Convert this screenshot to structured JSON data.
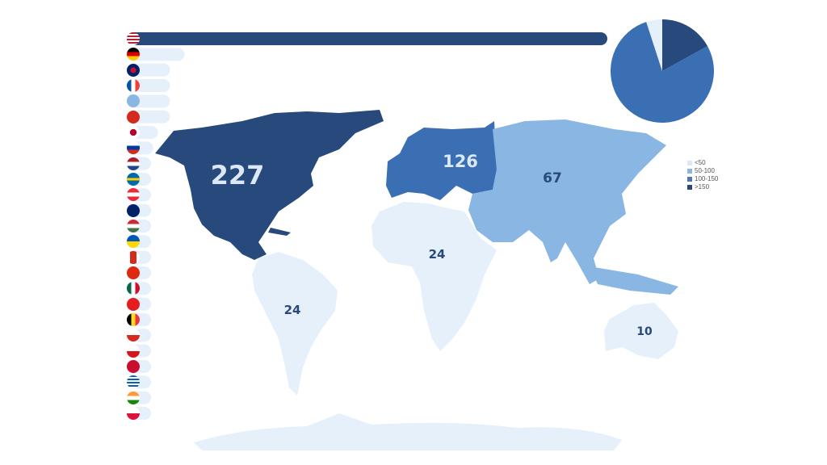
{
  "colors": {
    "lt50": "#e6f0fb",
    "r50_100": "#8ab6e4",
    "r100_150": "#3a6fb3",
    "gt150": "#27497c",
    "bar_track": "#e6f0fb"
  },
  "legend": [
    {
      "label": "<50",
      "color": "#dce8f5"
    },
    {
      "label": "50-100",
      "color": "#8ab6e4"
    },
    {
      "label": "100-150",
      "color": "#4a79b6"
    },
    {
      "label": ">150",
      "color": "#27497c"
    }
  ],
  "chart_data": [
    {
      "type": "map",
      "regions": [
        {
          "name": "North America",
          "value": 227,
          "label": "227"
        },
        {
          "name": "Europe",
          "value": 126,
          "label": "126"
        },
        {
          "name": "Asia",
          "value": 67,
          "label": "67"
        },
        {
          "name": "Africa",
          "value": 24,
          "label": "24"
        },
        {
          "name": "South America",
          "value": 24,
          "label": "24"
        },
        {
          "name": "Oceania",
          "value": 10,
          "label": "10"
        }
      ]
    },
    {
      "type": "pie",
      "slices": [
        {
          "category": ">150",
          "fraction": 0.17,
          "color": "#27497c"
        },
        {
          "category": "100-150",
          "fraction": 0.78,
          "color": "#3a6fb3"
        },
        {
          "category": "<50",
          "fraction": 0.05,
          "color": "#e6f0fb"
        }
      ]
    },
    {
      "type": "bar",
      "orientation": "horizontal",
      "categories": [
        "us",
        "de",
        "gb",
        "fr",
        "unknown",
        "ch",
        "jp",
        "ru",
        "nl",
        "se",
        "at",
        "au",
        "hu",
        "ua",
        "ca",
        "cn",
        "mx",
        "al",
        "be",
        "cl",
        "cz",
        "dk",
        "gr",
        "in",
        "pl"
      ],
      "values": [
        1.0,
        0.12,
        0.09,
        0.09,
        0.09,
        0.09,
        0.065,
        0.055,
        0.05,
        0.047,
        0.042,
        0.035,
        0.03,
        0.025,
        0.02,
        0.02,
        0.018,
        0.016,
        0.015,
        0.014,
        0.013,
        0.012,
        0.011,
        0.01,
        0.01
      ]
    }
  ]
}
